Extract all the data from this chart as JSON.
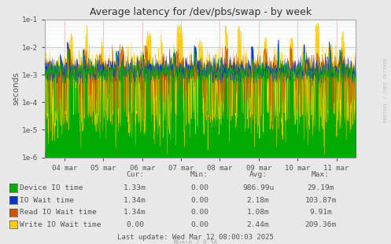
{
  "title": "Average latency for /dev/pbs/swap - by week",
  "ylabel": "seconds",
  "bg_color": "#e8e8e8",
  "plot_bg_color": "#ffffff",
  "grid_major_color": "#ffaaaa",
  "grid_minor_color": "#dddddd",
  "ylim": [
    1e-06,
    0.1
  ],
  "series": [
    {
      "label": "Device IO time",
      "color": "#00aa00",
      "zorder": 4
    },
    {
      "label": "IO Wait time",
      "color": "#0033cc",
      "zorder": 3
    },
    {
      "label": "Read IO Wait time",
      "color": "#cc5500",
      "zorder": 2
    },
    {
      "label": "Write IO Wait time",
      "color": "#ffcc00",
      "zorder": 1
    }
  ],
  "legend_headers": [
    "Cur:",
    "Min:",
    "Avg:",
    "Max:"
  ],
  "legend_data": [
    [
      "1.33m",
      "0.00",
      "986.99u",
      "29.19m"
    ],
    [
      "1.34m",
      "0.00",
      "2.18m",
      "103.87m"
    ],
    [
      "1.34m",
      "0.00",
      "1.08m",
      "9.91m"
    ],
    [
      "0.00",
      "0.00",
      "2.44m",
      "209.36m"
    ]
  ],
  "last_update": "Last update: Wed Mar 12 08:00:03 2025",
  "munin_version": "Munin 2.0.56",
  "rrdtool_label": "RRDTOOL / TOBI OETIKER",
  "xtick_labels": [
    "04 mar",
    "05 mar",
    "06 mar",
    "07 mar",
    "08 mar",
    "09 mar",
    "10 mar",
    "11 mar"
  ],
  "font_color": "#555555",
  "title_color": "#333333",
  "figsize": [
    4.97,
    3.11
  ],
  "dpi": 100
}
